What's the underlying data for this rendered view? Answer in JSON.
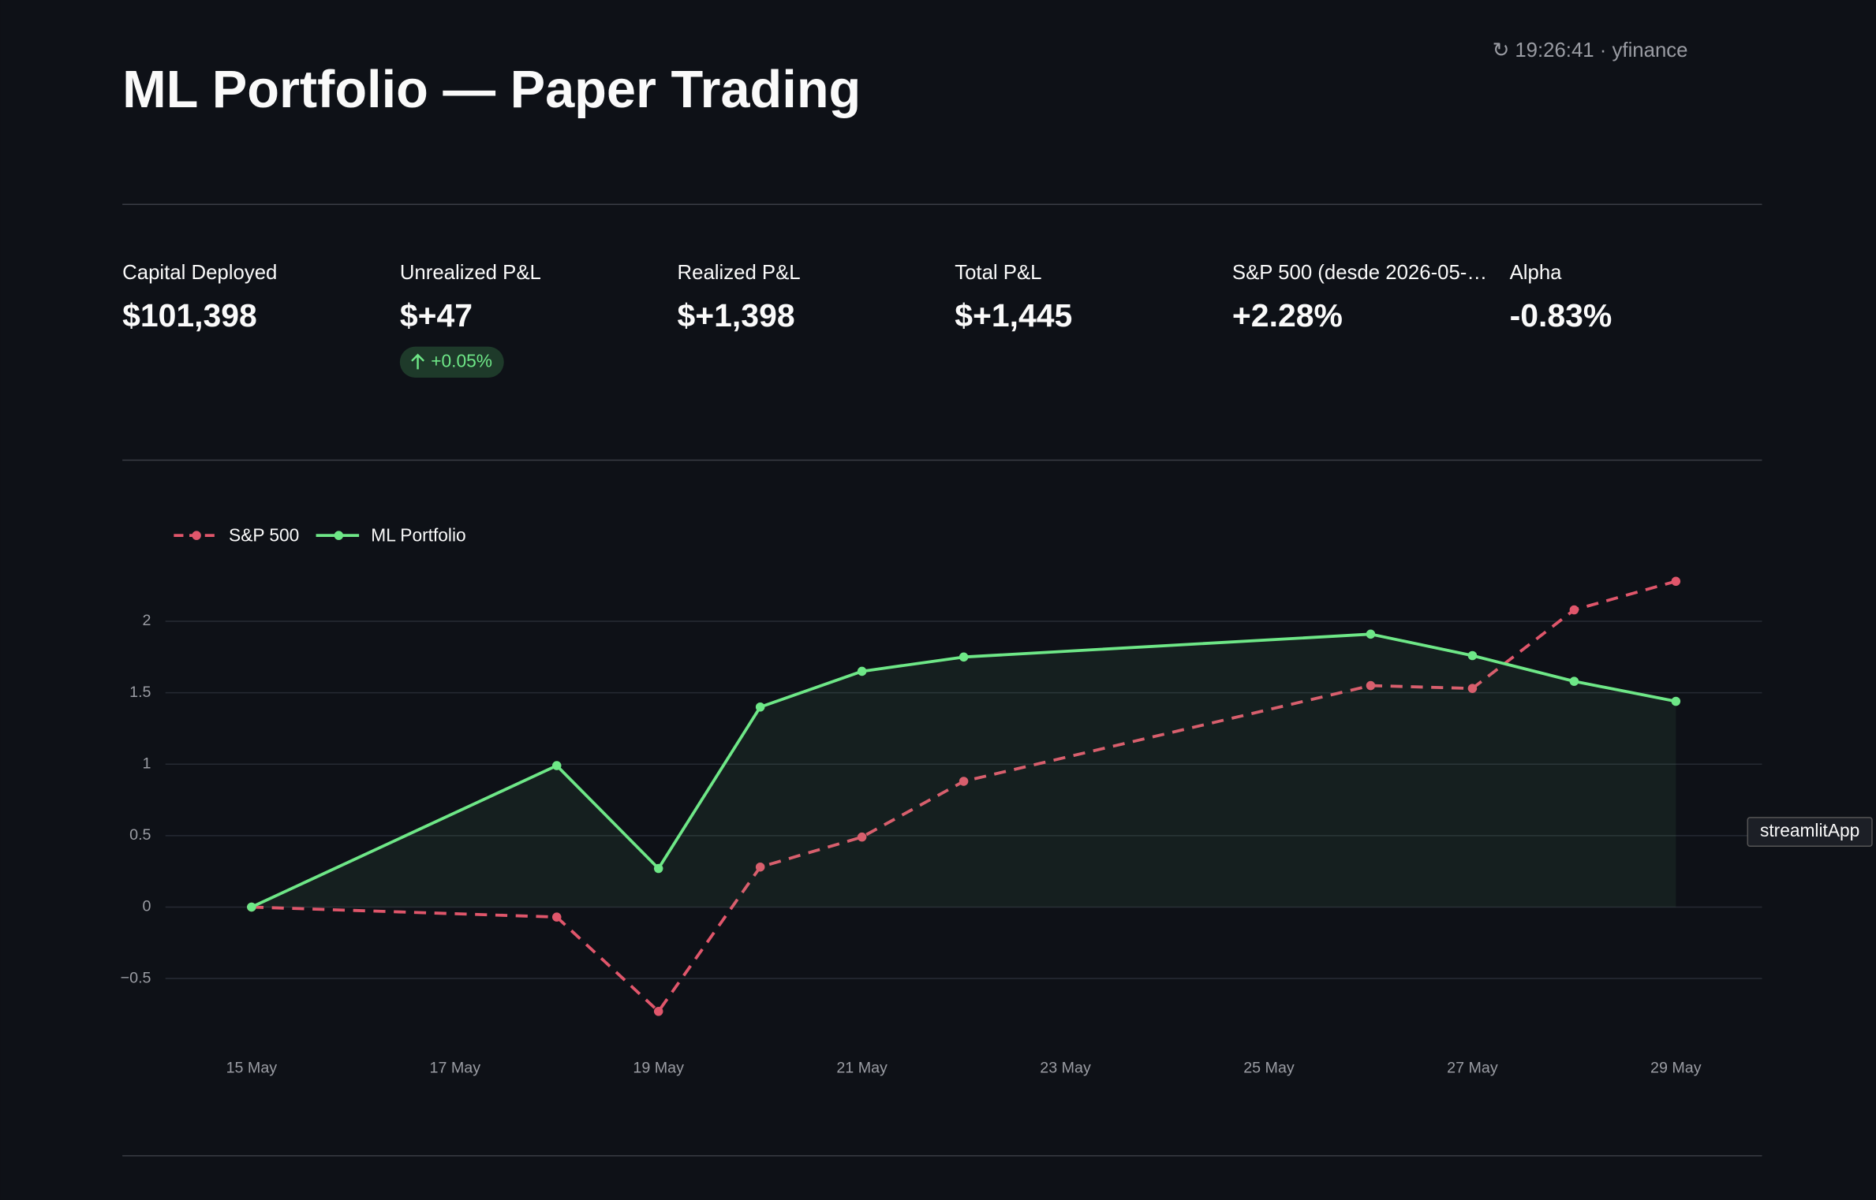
{
  "header": {
    "title": "ML Portfolio — Paper Trading",
    "status": "↻ 19:26:41 · yfinance"
  },
  "metrics": [
    {
      "label": "Capital Deployed",
      "value": "$101,398"
    },
    {
      "label": "Unrealized P&L",
      "value": "$+47",
      "delta": "+0.05%"
    },
    {
      "label": "Realized P&L",
      "value": "$+1,398"
    },
    {
      "label": "Total P&L",
      "value": "$+1,445"
    },
    {
      "label": "S&P 500 (desde 2026-05-…",
      "value": "+2.28%"
    },
    {
      "label": "Alpha",
      "value": "-0.83%"
    }
  ],
  "chart_data": {
    "type": "line",
    "x": [
      15,
      18,
      19,
      20,
      21,
      22,
      26,
      27,
      28,
      29
    ],
    "series": [
      {
        "name": "S&P 500",
        "color": "#e0566b",
        "dash": true,
        "values": [
          0,
          -0.07,
          -0.73,
          0.28,
          0.49,
          0.88,
          1.55,
          1.53,
          2.08,
          2.28
        ]
      },
      {
        "name": "ML Portfolio",
        "color": "#6ee787",
        "area": true,
        "values": [
          0,
          0.99,
          0.27,
          1.4,
          1.65,
          1.75,
          1.91,
          1.76,
          1.58,
          1.44
        ]
      }
    ],
    "xlim": [
      15,
      29
    ],
    "xticks": [
      {
        "value": 15,
        "label": "15 May"
      },
      {
        "value": 17,
        "label": "17 May"
      },
      {
        "value": 19,
        "label": "19 May"
      },
      {
        "value": 21,
        "label": "21 May"
      },
      {
        "value": 23,
        "label": "23 May"
      },
      {
        "value": 25,
        "label": "25 May"
      },
      {
        "value": 27,
        "label": "27 May"
      },
      {
        "value": 29,
        "label": "29 May"
      }
    ],
    "ylim": [
      -0.9,
      2.4
    ],
    "yticks": [
      {
        "value": -0.5,
        "label": "−0.5"
      },
      0,
      0.5,
      1,
      1.5,
      2
    ],
    "grid": true,
    "legend": "top-left"
  },
  "tooltip": "streamlitApp"
}
